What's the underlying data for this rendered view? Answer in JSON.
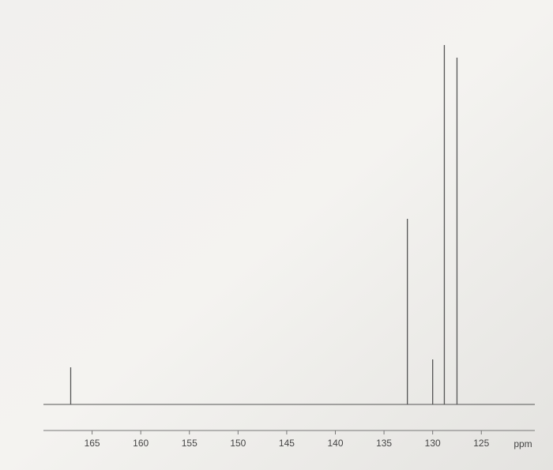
{
  "chart_data": {
    "type": "stem",
    "x": [
      167.2,
      132.6,
      130.0,
      128.8,
      127.5
    ],
    "values": [
      47,
      235,
      57,
      455,
      439
    ],
    "xlim": [
      170,
      119.5
    ],
    "ylim": [
      0,
      460
    ],
    "xticks": [
      165,
      160,
      155,
      150,
      145,
      140,
      135,
      130,
      125
    ],
    "x_label": "ppm",
    "color": "#555555"
  }
}
